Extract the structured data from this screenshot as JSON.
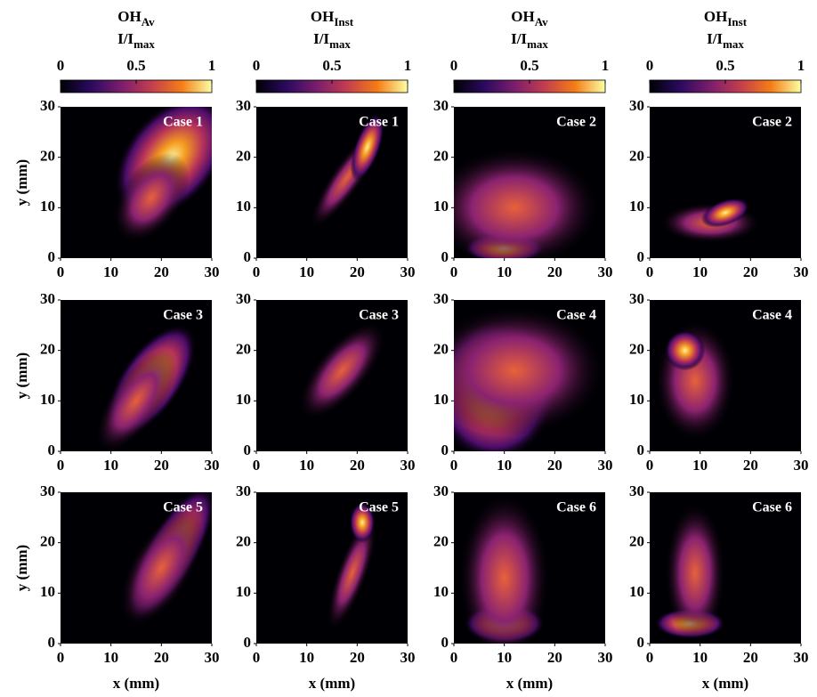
{
  "columns": [
    {
      "title": "OH",
      "title_sub": "Av",
      "scale": "I/I",
      "scale_sub": "max",
      "colorbar_lim": [
        0,
        1
      ],
      "colorbar_ticks": [
        0,
        0.5,
        1
      ]
    },
    {
      "title": "OH",
      "title_sub": "Inst",
      "scale": "I/I",
      "scale_sub": "max",
      "colorbar_lim": [
        0,
        1
      ],
      "colorbar_ticks": [
        0,
        0.5,
        1
      ]
    },
    {
      "title": "OH",
      "title_sub": "Av",
      "scale": "I/I",
      "scale_sub": "max",
      "colorbar_lim": [
        0,
        1
      ],
      "colorbar_ticks": [
        0,
        0.5,
        1
      ]
    },
    {
      "title": "OH",
      "title_sub": "Inst",
      "scale": "I/I",
      "scale_sub": "max",
      "colorbar_lim": [
        0,
        1
      ],
      "colorbar_ticks": [
        0,
        0.5,
        1
      ]
    }
  ],
  "chart_data": [
    {
      "type": "heatmap",
      "label": "Case 1",
      "ylabel": "y (mm)",
      "xlim": [
        0,
        30
      ],
      "ylim": [
        0,
        30
      ],
      "xticks": [
        0,
        10,
        20,
        30
      ],
      "yticks": [
        0,
        10,
        20,
        30
      ]
    },
    {
      "type": "heatmap",
      "label": "Case 1",
      "xlim": [
        0,
        30
      ],
      "ylim": [
        0,
        30
      ],
      "xticks": [
        0,
        10,
        20,
        30
      ],
      "yticks": [
        0,
        10,
        20,
        30
      ]
    },
    {
      "type": "heatmap",
      "label": "Case 2",
      "xlim": [
        0,
        30
      ],
      "ylim": [
        0,
        30
      ],
      "xticks": [
        0,
        10,
        20,
        30
      ],
      "yticks": [
        0,
        10,
        20,
        30
      ]
    },
    {
      "type": "heatmap",
      "label": "Case 2",
      "xlim": [
        0,
        30
      ],
      "ylim": [
        0,
        30
      ],
      "xticks": [
        0,
        10,
        20,
        30
      ],
      "yticks": [
        0,
        10,
        20,
        30
      ]
    },
    {
      "type": "heatmap",
      "label": "Case 3",
      "ylabel": "y (mm)",
      "xlim": [
        0,
        30
      ],
      "ylim": [
        0,
        30
      ],
      "xticks": [
        0,
        10,
        20,
        30
      ],
      "yticks": [
        0,
        10,
        20,
        30
      ]
    },
    {
      "type": "heatmap",
      "label": "Case 3",
      "xlim": [
        0,
        30
      ],
      "ylim": [
        0,
        30
      ],
      "xticks": [
        0,
        10,
        20,
        30
      ],
      "yticks": [
        0,
        10,
        20,
        30
      ]
    },
    {
      "type": "heatmap",
      "label": "Case 4",
      "xlim": [
        0,
        30
      ],
      "ylim": [
        0,
        30
      ],
      "xticks": [
        0,
        10,
        20,
        30
      ],
      "yticks": [
        0,
        10,
        20,
        30
      ]
    },
    {
      "type": "heatmap",
      "label": "Case 4",
      "xlim": [
        0,
        30
      ],
      "ylim": [
        0,
        30
      ],
      "xticks": [
        0,
        10,
        20,
        30
      ],
      "yticks": [
        0,
        10,
        20,
        30
      ]
    },
    {
      "type": "heatmap",
      "label": "Case  5",
      "ylabel": "y (mm)",
      "xlabel": "x (mm)",
      "xlim": [
        0,
        30
      ],
      "ylim": [
        0,
        30
      ],
      "xticks": [
        0,
        10,
        20,
        30
      ],
      "yticks": [
        0,
        10,
        20,
        30
      ]
    },
    {
      "type": "heatmap",
      "label": "Case  5",
      "xlabel": "x (mm)",
      "xlim": [
        0,
        30
      ],
      "ylim": [
        0,
        30
      ],
      "xticks": [
        0,
        10,
        20,
        30
      ],
      "yticks": [
        0,
        10,
        20,
        30
      ]
    },
    {
      "type": "heatmap",
      "label": "Case 6",
      "xlabel": "x (mm)",
      "xlim": [
        0,
        30
      ],
      "ylim": [
        0,
        30
      ],
      "xticks": [
        0,
        10,
        20,
        30
      ],
      "yticks": [
        0,
        10,
        20,
        30
      ]
    },
    {
      "type": "heatmap",
      "label": "Case 6",
      "xlabel": "x (mm)",
      "xlim": [
        0,
        30
      ],
      "ylim": [
        0,
        30
      ],
      "xticks": [
        0,
        10,
        20,
        30
      ],
      "yticks": [
        0,
        10,
        20,
        30
      ]
    }
  ]
}
